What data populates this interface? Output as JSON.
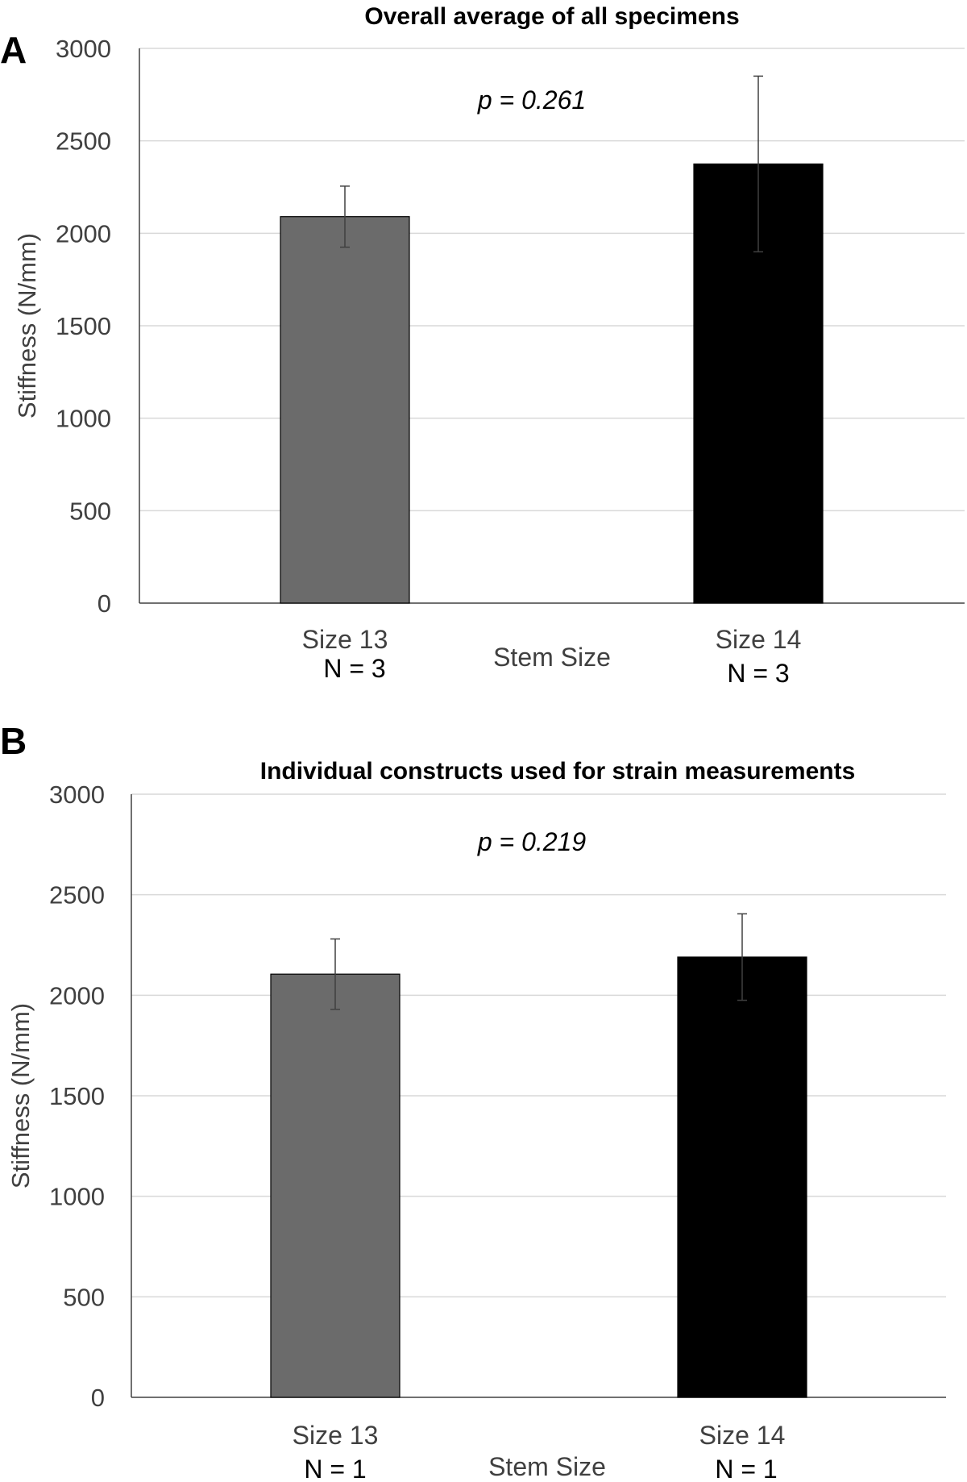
{
  "chart_data": [
    {
      "panel": "A",
      "type": "bar",
      "title": "Overall average of all specimens",
      "categories": [
        "Size 13",
        "Size 14"
      ],
      "n_labels": [
        "N = 3",
        "N = 3"
      ],
      "values": [
        2090,
        2375
      ],
      "errors": [
        165,
        475
      ],
      "colors": [
        "#6b6b6b",
        "#000000"
      ],
      "annotation": "p = 0.261",
      "xlabel": "Stem Size",
      "ylabel": "Stiffness (N/mm)",
      "ylim": [
        0,
        3000
      ],
      "yticks": [
        0,
        500,
        1000,
        1500,
        2000,
        2500,
        3000
      ],
      "grid": true
    },
    {
      "panel": "B",
      "type": "bar",
      "title": "Individual constructs used for strain measurements",
      "categories": [
        "Size 13",
        "Size 14"
      ],
      "n_labels": [
        "N = 1",
        "N = 1"
      ],
      "values": [
        2105,
        2190
      ],
      "errors": [
        175,
        215
      ],
      "colors": [
        "#6b6b6b",
        "#000000"
      ],
      "annotation": "p = 0.219",
      "xlabel": "Stem Size",
      "ylabel": "Stiffness (N/mm)",
      "ylim": [
        0,
        3000
      ],
      "yticks": [
        0,
        500,
        1000,
        1500,
        2000,
        2500,
        3000
      ],
      "grid": true
    }
  ]
}
